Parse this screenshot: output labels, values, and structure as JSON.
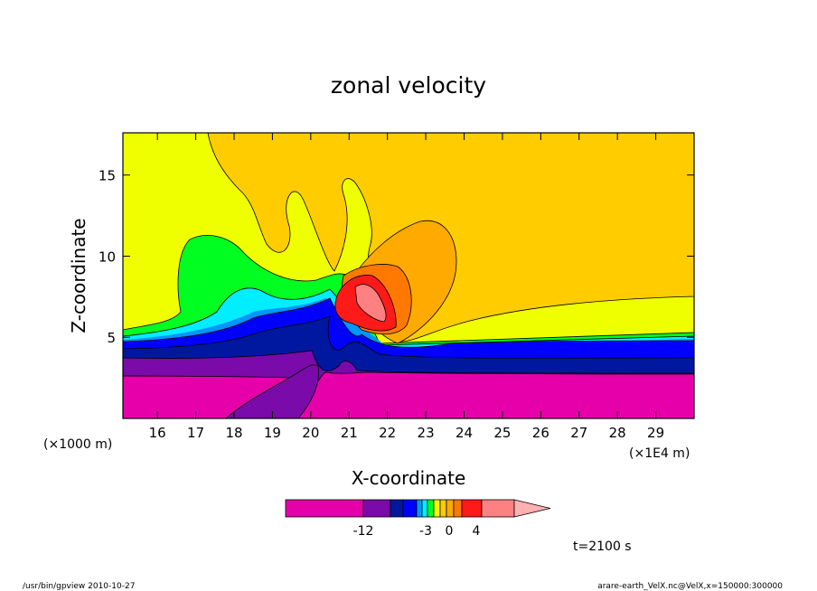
{
  "chart_data": {
    "type": "heatmap",
    "title": "zonal velocity",
    "xlabel": "X-coordinate",
    "ylabel": "Z-coordinate",
    "x_unit_left": "(×1000 m)",
    "x_unit_right": "(×1E4 m)",
    "xticks": [
      "16",
      "17",
      "18",
      "19",
      "20",
      "21",
      "22",
      "23",
      "24",
      "25",
      "26",
      "27",
      "28",
      "29"
    ],
    "yticks": [
      "5",
      "10",
      "15"
    ],
    "xlim": [
      15.1,
      30.0
    ],
    "ylim": [
      0.0,
      17.6
    ],
    "colorbar": {
      "levels": [
        "<-12",
        "-12",
        "-9",
        "-6",
        "-3",
        "-2",
        "-1",
        "0",
        "1",
        "2",
        "3",
        "4",
        "5",
        ">5"
      ],
      "colors": [
        "#e600aa",
        "#7a0aaa",
        "#0018a0",
        "#0000ff",
        "#0096ff",
        "#00eeff",
        "#00ff20",
        "#f0ff00",
        "#ffcc00",
        "#ffaa00",
        "#ff7800",
        "#ff1a1a",
        "#ff8080",
        "#ffb0b0"
      ],
      "tick_labels": [
        "-12",
        "-3",
        "0",
        "4"
      ]
    },
    "time_label": "t=2100 s",
    "grid": false
  },
  "footer": {
    "left": "/usr/bin/gpview  2010-10-27",
    "right": "arare-earth_VelX.nc@VelX,x=150000:300000"
  }
}
